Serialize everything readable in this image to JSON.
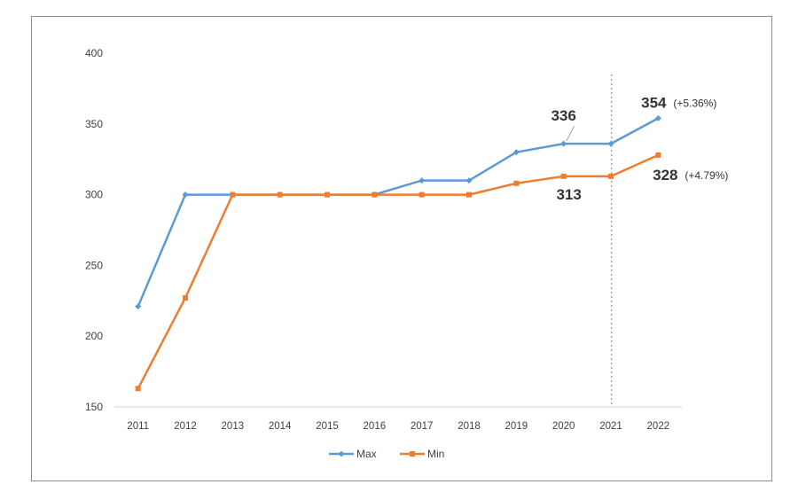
{
  "chart_data": {
    "type": "line",
    "x": [
      "2011",
      "2012",
      "2013",
      "2014",
      "2015",
      "2016",
      "2017",
      "2018",
      "2019",
      "2020",
      "2021",
      "2022"
    ],
    "series": [
      {
        "name": "Max",
        "color": "#5b9bd5",
        "marker": "diamond",
        "values": [
          221,
          300,
          300,
          300,
          300,
          300,
          310,
          310,
          330,
          336,
          336,
          354
        ]
      },
      {
        "name": "Min",
        "color": "#ed7d31",
        "marker": "square",
        "values": [
          163,
          227,
          300,
          300,
          300,
          300,
          300,
          300,
          308,
          313,
          313,
          328
        ]
      }
    ],
    "ylim": [
      150,
      400
    ],
    "yticks": [
      "150",
      "200",
      "250",
      "300",
      "350",
      "400"
    ],
    "grid": false,
    "legend": "bottom-center",
    "reference_line": {
      "x": "2021",
      "style": "dotted",
      "color": "#a6a6a6"
    },
    "annotations": [
      {
        "series": "Max",
        "x": "2020",
        "value": "336",
        "note": ""
      },
      {
        "series": "Max",
        "x": "2022",
        "value": "354",
        "note": "(+5.36%)"
      },
      {
        "series": "Min",
        "x": "2020",
        "value": "313",
        "note": ""
      },
      {
        "series": "Min",
        "x": "2022",
        "value": "328",
        "note": "(+4.79%)"
      }
    ]
  }
}
